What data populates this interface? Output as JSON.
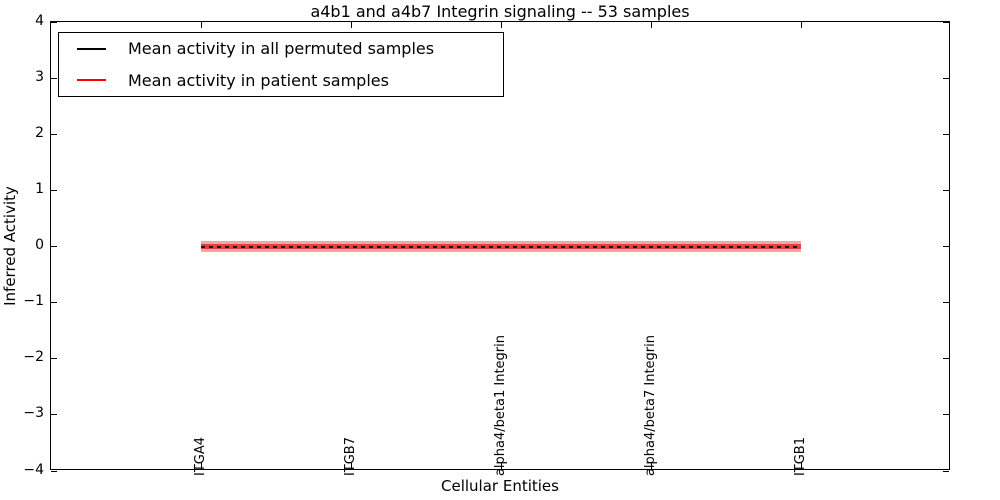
{
  "legend": {
    "position": "upper left",
    "entries": [
      {
        "label": "Mean activity in all permuted samples",
        "color": "#000000"
      },
      {
        "label": "Mean activity in patient samples",
        "color": "#ff0000"
      }
    ]
  },
  "chart_data": {
    "type": "line",
    "title": "a4b1 and a4b7 Integrin signaling -- 53 samples",
    "xlabel": "Cellular Entities",
    "ylabel": "Inferred Activity",
    "ylim": [
      -4,
      4
    ],
    "yticks": [
      4,
      3,
      2,
      1,
      0,
      -1,
      -2,
      -3,
      -4
    ],
    "ytick_labels": [
      "4",
      "3",
      "2",
      "1",
      "0",
      "−1",
      "−2",
      "−3",
      "−4"
    ],
    "grid": false,
    "legend_position": "upper left",
    "categories": [
      "ITGA4",
      "ITGB7",
      "alpha4/beta1 Integrin",
      "alpha4/beta7 Integrin",
      "ITGB1"
    ],
    "series": [
      {
        "name": "Mean activity in all permuted samples",
        "color": "#000000",
        "linestyle": "dashed",
        "values": [
          0.0,
          0.0,
          0.0,
          0.0,
          0.0
        ]
      },
      {
        "name": "Mean activity in patient samples",
        "color": "#e04040",
        "linestyle": "solid",
        "values": [
          0.02,
          0.02,
          0.02,
          0.02,
          0.02
        ]
      }
    ],
    "band": {
      "color": "#f4a6a6",
      "core_color": "#e04040",
      "lower": -0.1,
      "upper": 0.1
    }
  }
}
